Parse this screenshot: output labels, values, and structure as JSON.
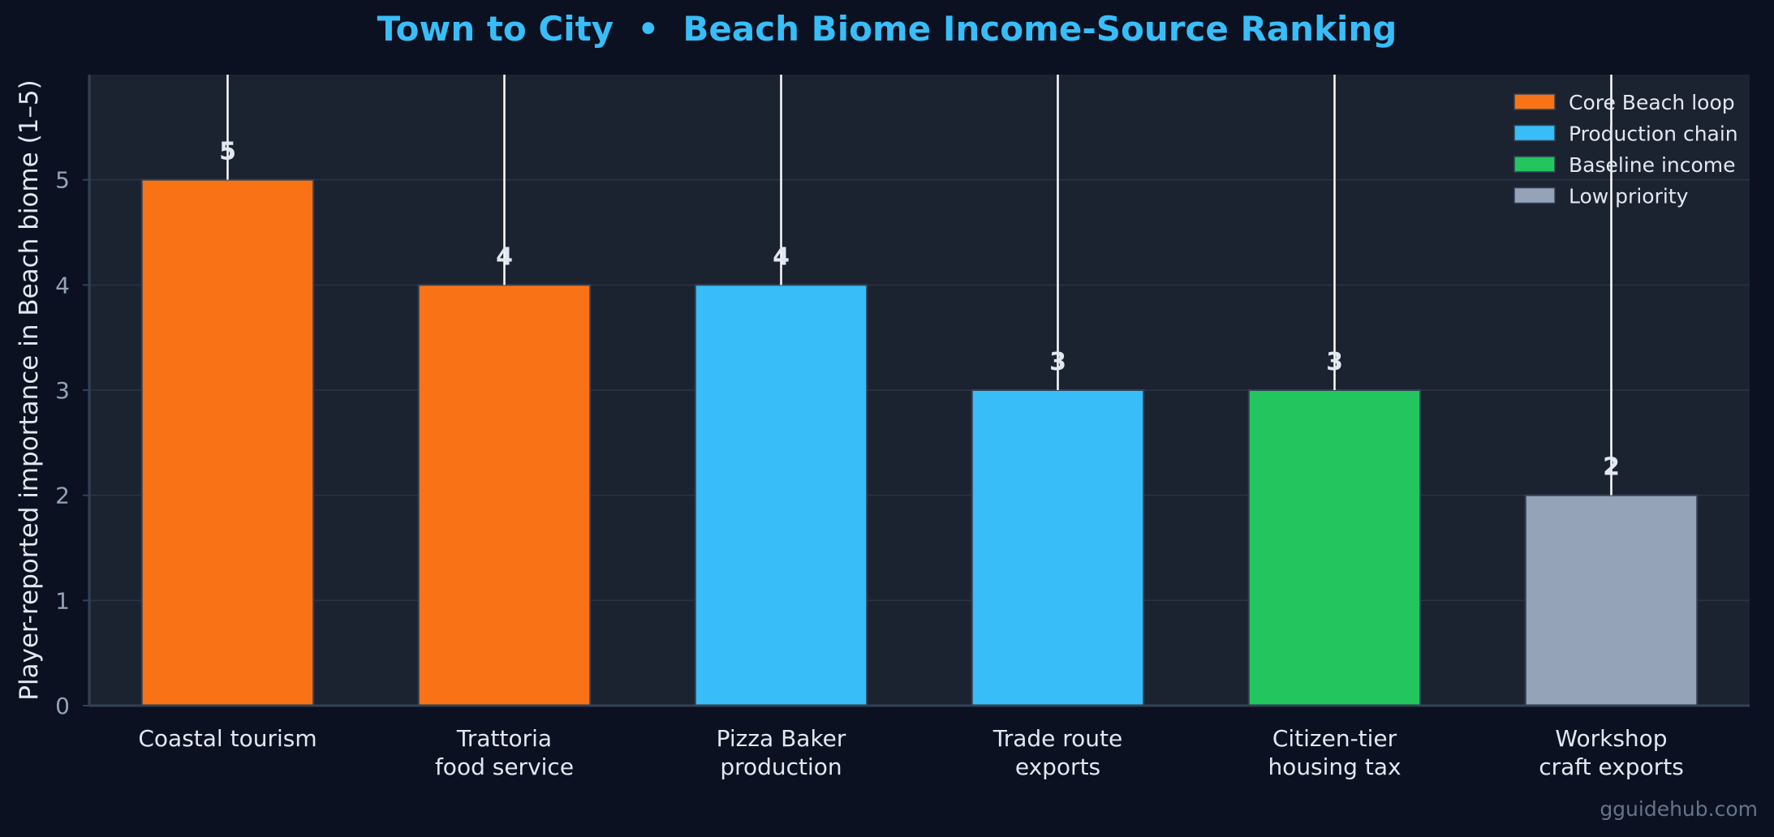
{
  "chart_data": {
    "type": "bar",
    "title": "Town to City  •  Beach Biome Income-Source Ranking",
    "xlabel": "",
    "ylabel": "Player-reported importance in Beach biome (1–5)",
    "ylim": [
      0,
      6
    ],
    "yticks": [
      "0",
      "1",
      "2",
      "3",
      "4",
      "5"
    ],
    "grid": true,
    "legend_position": "top-right",
    "categories": [
      [
        "Coastal tourism"
      ],
      [
        "Trattoria",
        "food service"
      ],
      [
        "Pizza Baker",
        "production"
      ],
      [
        "Trade route",
        "exports"
      ],
      [
        "Citizen-tier",
        "housing tax"
      ],
      [
        "Workshop",
        "craft exports"
      ]
    ],
    "values": [
      5,
      4,
      4,
      3,
      3,
      2
    ],
    "data_labels": [
      "5",
      "4",
      "4",
      "3",
      "3",
      "2"
    ],
    "bar_groups": [
      "Core Beach loop",
      "Core Beach loop",
      "Production chain",
      "Production chain",
      "Baseline income",
      "Low priority"
    ],
    "legend": [
      {
        "label": "Core Beach loop",
        "color": "#f97316"
      },
      {
        "label": "Production chain",
        "color": "#38bdf8"
      },
      {
        "label": "Baseline income",
        "color": "#22c55e"
      },
      {
        "label": "Low priority",
        "color": "#94a3b8"
      }
    ],
    "colors": {
      "background": "#0b1120",
      "plot_background": "#1b2331",
      "title": "#38bdf8",
      "axis_text": "#94a3b8",
      "label_text": "#e2e8f0",
      "leader_line": "#ffffff"
    }
  },
  "watermark": "gguidehub.com"
}
